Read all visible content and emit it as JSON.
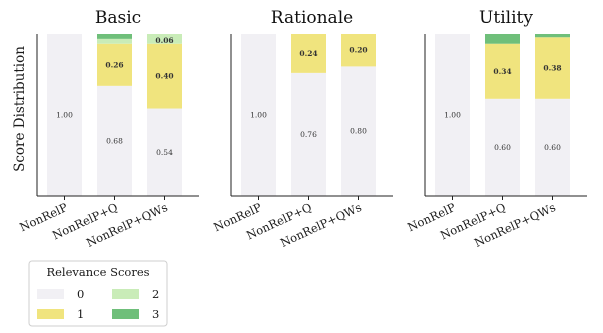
{
  "figure": {
    "ylabel": "Score Distribution",
    "legend": {
      "title": "Relevance Scores",
      "placement": "bottom-left",
      "entries": [
        {
          "label": "0",
          "color": "#f1f0f4"
        },
        {
          "label": "1",
          "color": "#f0e47e"
        },
        {
          "label": "2",
          "color": "#c9ecb8"
        },
        {
          "label": "3",
          "color": "#6fbf7a"
        }
      ]
    }
  },
  "chart_data": [
    {
      "type": "bar",
      "stacked": true,
      "title": "Basic",
      "categories": [
        "NonRelP",
        "NonRelP+Q",
        "NonRelP+QWs"
      ],
      "ylim": [
        0,
        1
      ],
      "grid": false,
      "series": [
        {
          "name": "0",
          "color": "#f1f0f4",
          "values": [
            1.0,
            0.68,
            0.54
          ],
          "labels": [
            "1.00",
            "0.68",
            "0.54"
          ]
        },
        {
          "name": "1",
          "color": "#f0e47e",
          "values": [
            0.0,
            0.26,
            0.4
          ],
          "labels": [
            "",
            "0.26",
            "0.40"
          ]
        },
        {
          "name": "2",
          "color": "#c9ecb8",
          "values": [
            0.0,
            0.03,
            0.06
          ],
          "labels": [
            "",
            "",
            "0.06"
          ]
        },
        {
          "name": "3",
          "color": "#6fbf7a",
          "values": [
            0.0,
            0.03,
            0.0
          ],
          "labels": [
            "",
            "",
            ""
          ]
        }
      ]
    },
    {
      "type": "bar",
      "stacked": true,
      "title": "Rationale",
      "categories": [
        "NonRelP",
        "NonRelP+Q",
        "NonRelP+QWs"
      ],
      "ylim": [
        0,
        1
      ],
      "grid": false,
      "series": [
        {
          "name": "0",
          "color": "#f1f0f4",
          "values": [
            1.0,
            0.76,
            0.8
          ],
          "labels": [
            "1.00",
            "0.76",
            "0.80"
          ]
        },
        {
          "name": "1",
          "color": "#f0e47e",
          "values": [
            0.0,
            0.24,
            0.2
          ],
          "labels": [
            "",
            "0.24",
            "0.20"
          ]
        },
        {
          "name": "2",
          "color": "#c9ecb8",
          "values": [
            0.0,
            0.0,
            0.0
          ],
          "labels": [
            "",
            "",
            ""
          ]
        },
        {
          "name": "3",
          "color": "#6fbf7a",
          "values": [
            0.0,
            0.0,
            0.0
          ],
          "labels": [
            "",
            "",
            ""
          ]
        }
      ]
    },
    {
      "type": "bar",
      "stacked": true,
      "title": "Utility",
      "categories": [
        "NonRelP",
        "NonRelP+Q",
        "NonRelP+QWs"
      ],
      "ylim": [
        0,
        1
      ],
      "grid": false,
      "series": [
        {
          "name": "0",
          "color": "#f1f0f4",
          "values": [
            1.0,
            0.6,
            0.6
          ],
          "labels": [
            "1.00",
            "0.60",
            "0.60"
          ]
        },
        {
          "name": "1",
          "color": "#f0e47e",
          "values": [
            0.0,
            0.34,
            0.38
          ],
          "labels": [
            "",
            "0.34",
            "0.38"
          ]
        },
        {
          "name": "2",
          "color": "#c9ecb8",
          "values": [
            0.0,
            0.0,
            0.0
          ],
          "labels": [
            "",
            "",
            ""
          ]
        },
        {
          "name": "3",
          "color": "#6fbf7a",
          "values": [
            0.0,
            0.06,
            0.02
          ],
          "labels": [
            "",
            "",
            ""
          ]
        }
      ]
    }
  ]
}
